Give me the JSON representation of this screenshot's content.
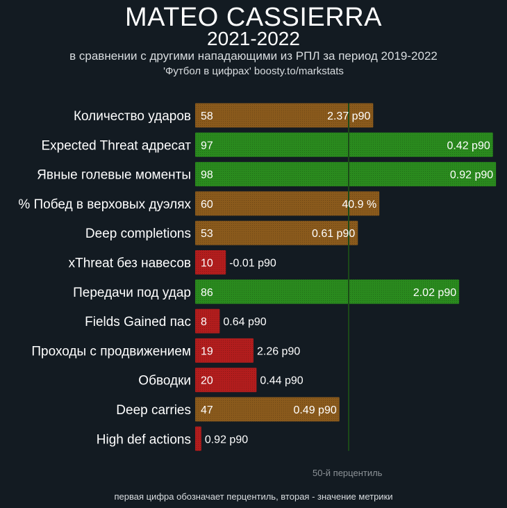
{
  "header": {
    "title": "MATEO CASSIERRA",
    "season": "2021-2022",
    "subtitle": "в сравнении с другими нападающими из РПЛ за период 2019-2022",
    "source": "'Футбол в цифрах' boosty.to/markstats"
  },
  "footer": {
    "median_label": "50-й перцентиль",
    "note": "первая цифра обозначает перцентиль, вторая - значение метрики"
  },
  "colors": {
    "high": "#2a8a1e",
    "mid": "#8a5a1c",
    "low": "#b21d1d",
    "median_line": "#1b4a18"
  },
  "chart_data": {
    "type": "bar",
    "orientation": "horizontal",
    "xlim": [
      0,
      100
    ],
    "median_percentile": 50,
    "categories": [
      "Количество ударов",
      "Expected Threat адресат",
      "Явные голевые моменты",
      "% Побед в верховых дуэлях",
      "Deep completions",
      "xThreat без навесов",
      "Передачи под удар",
      "Fields Gained пас",
      "Проходы с продвижением",
      "Обводки",
      "Deep carries",
      "High def actions"
    ],
    "percentiles": [
      58,
      97,
      98,
      60,
      53,
      10,
      86,
      8,
      19,
      20,
      47,
      2
    ],
    "percentile_labels": [
      "58",
      "97",
      "98",
      "60",
      "53",
      "10",
      "86",
      "8",
      "19",
      "20",
      "47",
      ""
    ],
    "metric_values": [
      "2.37 p90",
      "0.42 p90",
      "0.92 p90",
      "40.9 %",
      "0.61 p90",
      "-0.01 p90",
      "2.02 p90",
      "0.64 p90",
      "2.26 p90",
      "0.44 p90",
      "0.49 p90",
      "0.92 p90"
    ],
    "tiers": [
      "mid",
      "high",
      "high",
      "mid",
      "mid",
      "low",
      "high",
      "low",
      "low",
      "low",
      "mid",
      "low"
    ]
  }
}
